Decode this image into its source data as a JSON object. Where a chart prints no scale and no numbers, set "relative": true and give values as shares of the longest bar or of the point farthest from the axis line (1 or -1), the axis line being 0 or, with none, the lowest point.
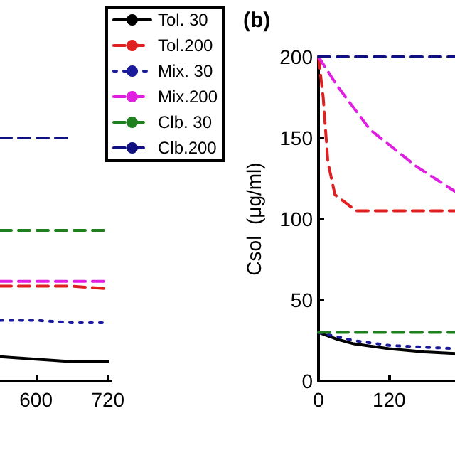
{
  "chart_data": [
    {
      "type": "line",
      "relative": true,
      "x": [
        540,
        600,
        660,
        720
      ],
      "xlim": [
        540,
        725
      ],
      "xticks": [
        600,
        720
      ],
      "tick_labels": "x",
      "legend": "top right",
      "grid": false,
      "marker": "none",
      "series": [
        {
          "name": "Tol. 30",
          "color": "#000000",
          "line_style": "solid",
          "values": [
            0.1,
            0.09,
            0.08,
            0.08
          ]
        },
        {
          "name": "Tol.200",
          "color": "#e02020",
          "line_style": "dashed",
          "values": [
            0.39,
            0.39,
            0.39,
            0.38
          ]
        },
        {
          "name": "Mix. 30",
          "color": "#1a1a9a",
          "line_style": "dotted",
          "values": [
            0.25,
            0.25,
            0.24,
            0.24
          ]
        },
        {
          "name": "Mix.200",
          "color": "#e020e0",
          "line_style": "dashed",
          "values": [
            0.41,
            0.41,
            0.41,
            0.41
          ]
        },
        {
          "name": "Clb. 30",
          "color": "#208020",
          "line_style": "dashed",
          "values": [
            0.62,
            0.62,
            0.62,
            0.62
          ]
        },
        {
          "name": "Clb.200",
          "color": "#101080",
          "line_style": "dashed",
          "values": [
            1,
            1,
            1,
            null
          ]
        }
      ]
    },
    {
      "type": "line",
      "title": "(b)",
      "ylabel": "Csol  (μg/ml)",
      "xlim": [
        0,
        232
      ],
      "xticks": [
        0,
        120
      ],
      "ylim": [
        0,
        200
      ],
      "yticks": [
        0,
        50,
        100,
        150,
        200
      ],
      "legend": false,
      "grid": false,
      "marker": "none",
      "series": [
        {
          "color": "#000000",
          "line_style": "solid",
          "x": [
            0,
            30,
            60,
            120,
            180,
            232
          ],
          "values": [
            30,
            26,
            23,
            20,
            18,
            17
          ]
        },
        {
          "color": "#e02020",
          "line_style": "dashed",
          "x": [
            0,
            8,
            16,
            28,
            64,
            232
          ],
          "values": [
            200,
            175,
            135,
            115,
            105,
            105
          ]
        },
        {
          "color": "#1a1a9a",
          "line_style": "dotted",
          "x": [
            0,
            60,
            120,
            232
          ],
          "values": [
            30,
            25,
            22,
            20
          ]
        },
        {
          "color": "#e020e0",
          "line_style": "dashed",
          "x": [
            0,
            32,
            88,
            168,
            232
          ],
          "values": [
            200,
            182,
            155,
            132,
            117
          ]
        },
        {
          "color": "#208020",
          "line_style": "dashed",
          "x": [
            0,
            232
          ],
          "values": [
            30,
            30
          ]
        },
        {
          "color": "#101080",
          "line_style": "dashed",
          "x": [
            0,
            232
          ],
          "values": [
            200,
            200
          ]
        }
      ]
    }
  ]
}
